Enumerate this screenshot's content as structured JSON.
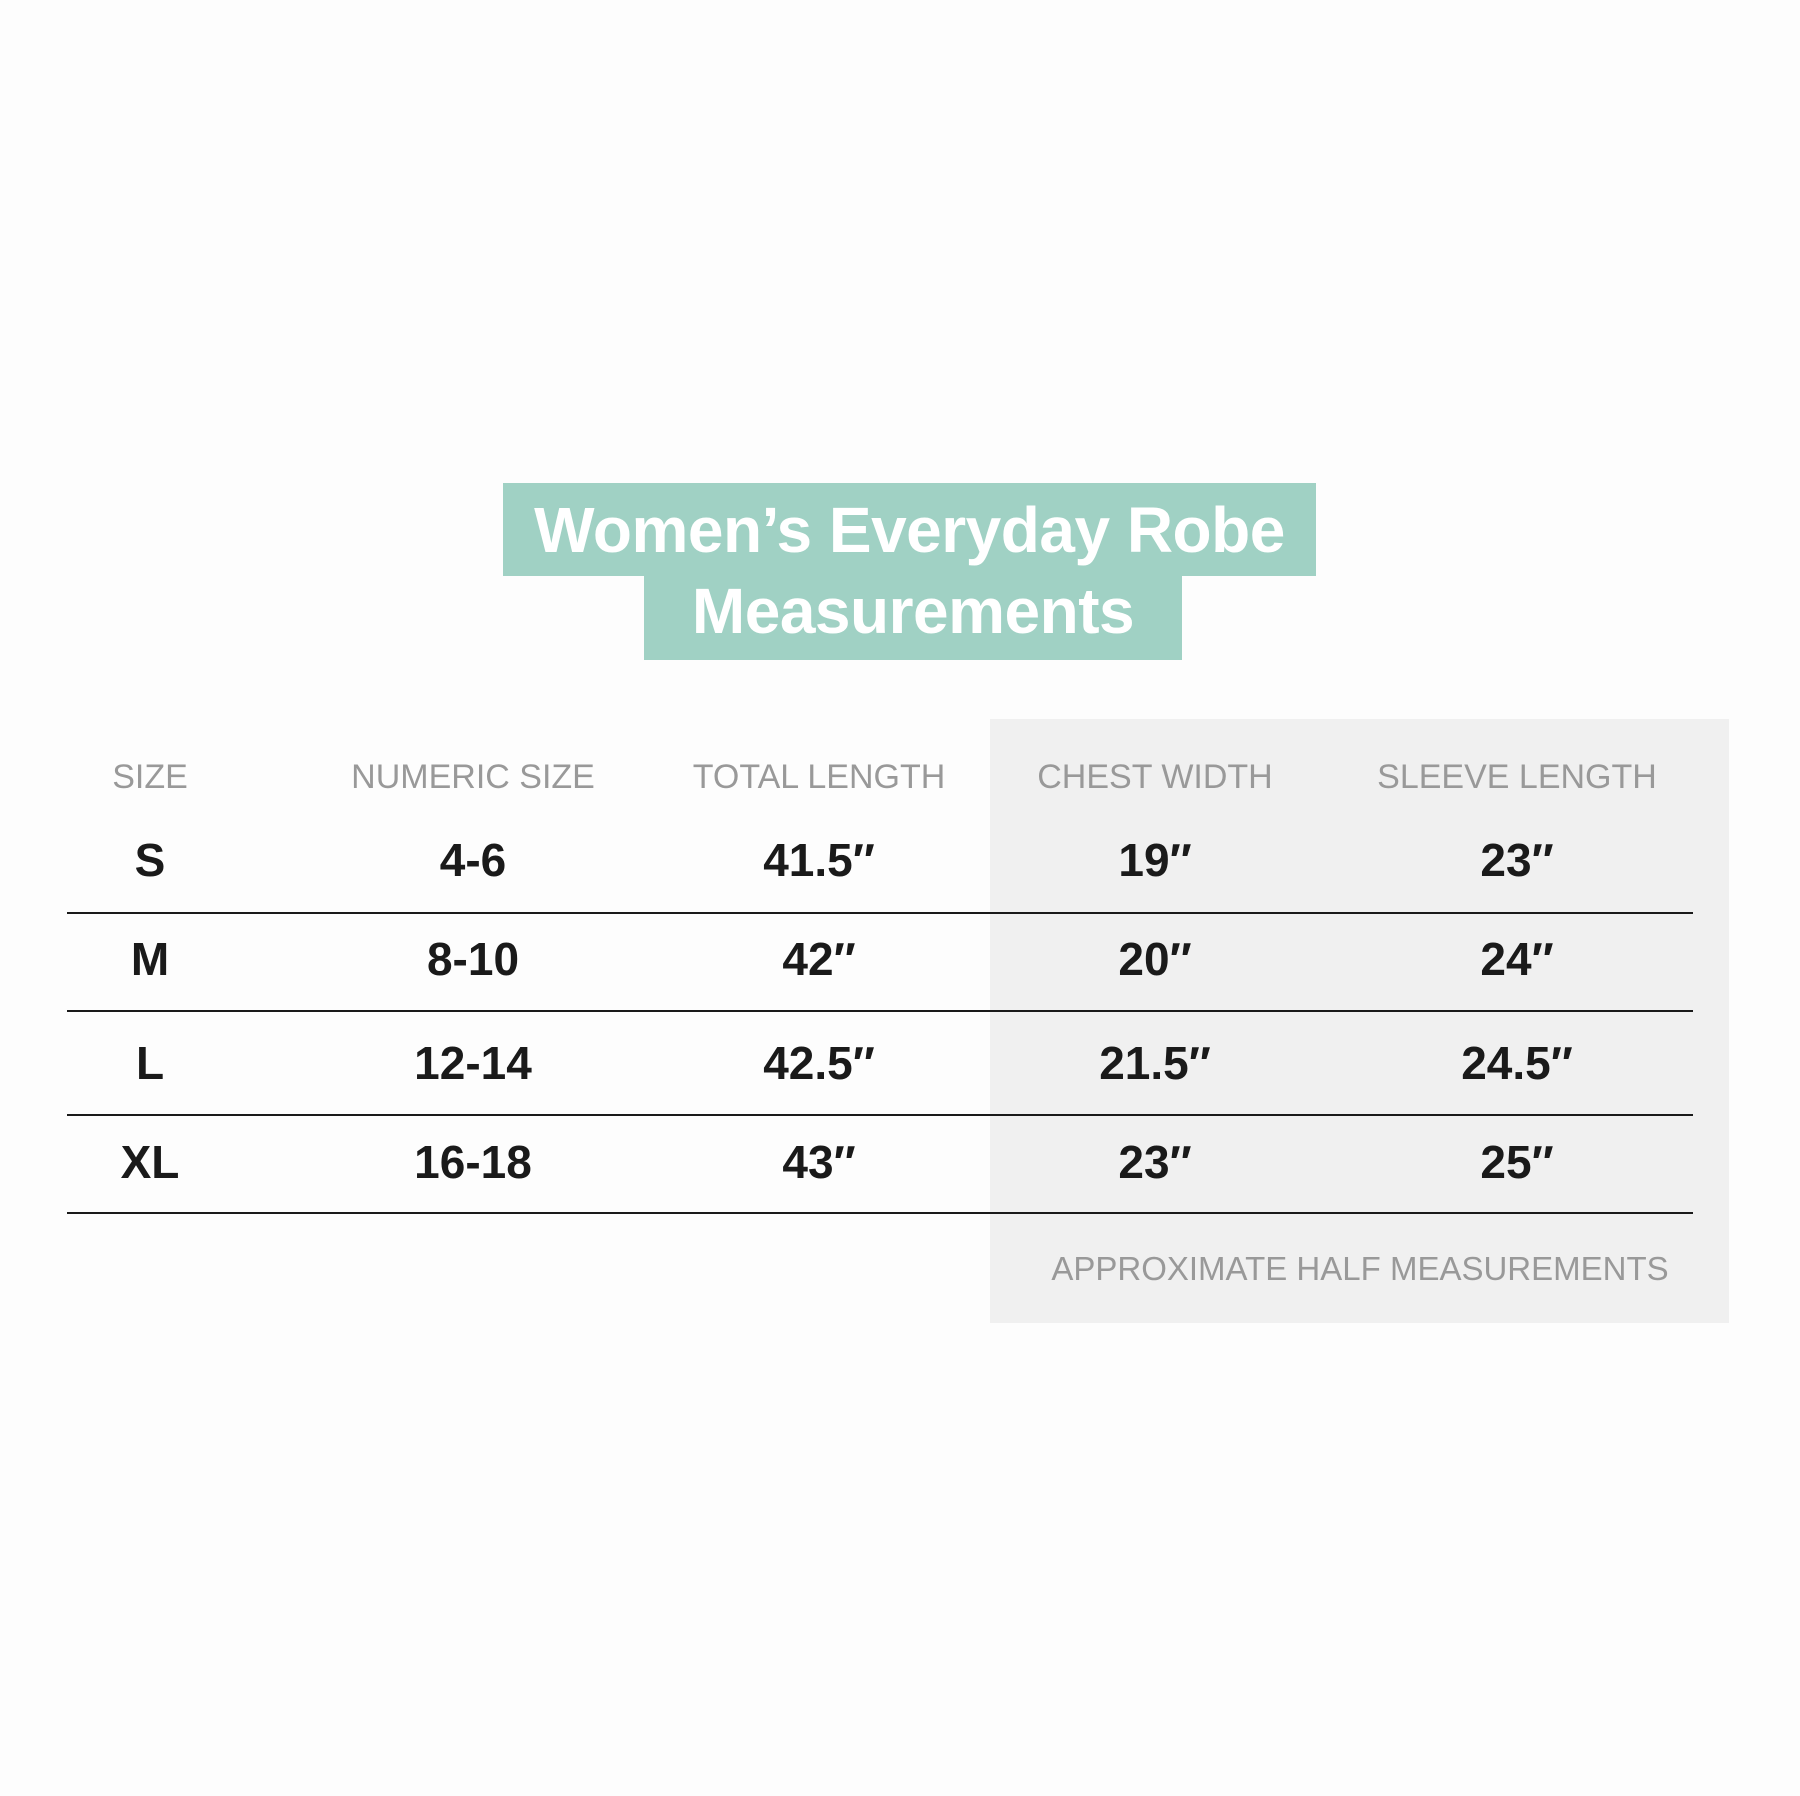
{
  "title": {
    "line1": "Women’s Everyday Robe",
    "line2": "Measurements"
  },
  "colors": {
    "title_bg": "#a0d1c4",
    "panel_bg": "#f0f0f0",
    "header_text": "#999999",
    "value_text": "#1a1a1a"
  },
  "table": {
    "headers": [
      "SIZE",
      "NUMERIC SIZE",
      "TOTAL LENGTH",
      "CHEST WIDTH",
      "SLEEVE LENGTH"
    ],
    "rows": [
      [
        "S",
        "4-6",
        "41.5″",
        "19″",
        "23″"
      ],
      [
        "M",
        "8-10",
        "42″",
        "20″",
        "24″"
      ],
      [
        "L",
        "12-14",
        "42.5″",
        "21.5″",
        "24.5″"
      ],
      [
        "XL",
        "16-18",
        "43″",
        "23″",
        "25″"
      ]
    ]
  },
  "footnote": "APPROXIMATE HALF MEASUREMENTS"
}
